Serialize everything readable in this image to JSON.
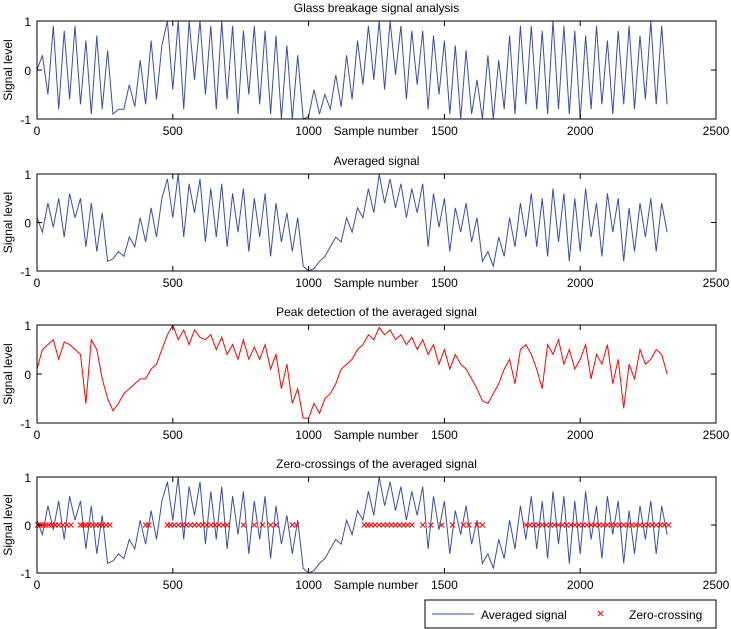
{
  "chart_data": [
    {
      "type": "line",
      "title": "Glass breakage signal analysis",
      "xlabel": "Sample number",
      "ylabel": "Signal level",
      "xlim": [
        0,
        2500
      ],
      "ylim": [
        -1,
        1
      ],
      "xticks": [
        "0",
        "500",
        "1000",
        "1500",
        "2000",
        "2500"
      ],
      "yticks": [
        "-1",
        "0",
        "1"
      ],
      "grid": false,
      "color": "#3a4ea6",
      "x_start": 0,
      "x_step": 20,
      "series": [
        {
          "values": [
            0,
            0.3,
            -0.5,
            0.9,
            -0.8,
            0.8,
            -0.6,
            0.9,
            -0.7,
            0.6,
            -0.9,
            0.7,
            -0.8,
            0.4,
            -0.9,
            -0.8,
            -0.8,
            -0.3,
            -0.75,
            0.2,
            -0.7,
            0.6,
            -0.6,
            0.5,
            1,
            -0.4,
            1,
            -0.8,
            1,
            -0.2,
            1,
            -0.5,
            0.9,
            -0.8,
            1,
            -0.6,
            0.9,
            -0.9,
            0.8,
            -0.5,
            0.9,
            -0.7,
            0.8,
            -0.9,
            0.7,
            -1,
            0.5,
            -1,
            0.3,
            -1,
            -0.95,
            -0.4,
            -0.9,
            -0.5,
            -0.8,
            -0.1,
            -0.75,
            0.3,
            -0.6,
            0.6,
            -0.3,
            0.9,
            -0.2,
            1,
            -0.4,
            1,
            -0.1,
            0.9,
            -0.6,
            0.8,
            -0.3,
            0.8,
            -0.8,
            0.7,
            -0.5,
            0.6,
            -0.9,
            0.5,
            -1,
            0.4,
            -0.9,
            -0.2,
            -1,
            0.3,
            -1,
            0.2,
            -0.8,
            0.7,
            -0.9,
            0.9,
            -0.7,
            0.9,
            -0.8,
            0.8,
            -0.9,
            1,
            -0.8,
            0.9,
            -0.9,
            0.8,
            -1,
            0.7,
            -0.8,
            0.9,
            -0.7,
            0.6,
            -0.9,
            0.8,
            -0.7,
            0.9,
            -0.8,
            0.7,
            -0.6,
            1,
            -0.7,
            0.9,
            -0.7
          ]
        }
      ]
    },
    {
      "type": "line",
      "title": "Averaged signal",
      "xlabel": "Sample number",
      "ylabel": "Signal level",
      "xlim": [
        0,
        2500
      ],
      "ylim": [
        -1,
        1
      ],
      "xticks": [
        "0",
        "500",
        "1000",
        "1500",
        "2000",
        "2500"
      ],
      "yticks": [
        "-1",
        "0",
        "1"
      ],
      "grid": false,
      "color": "#3a4ea6",
      "x_start": 0,
      "x_step": 20,
      "series": [
        {
          "values": [
            0.1,
            -0.2,
            0.4,
            -0.1,
            0.5,
            -0.3,
            0.6,
            0.1,
            0.5,
            -0.5,
            0.4,
            -0.6,
            0.2,
            -0.8,
            -0.75,
            -0.6,
            -0.7,
            -0.3,
            -0.5,
            0.1,
            -0.4,
            0.3,
            -0.3,
            0.5,
            0.9,
            0.1,
            1,
            -0.3,
            0.8,
            0.2,
            0.9,
            -0.4,
            0.7,
            -0.3,
            0.8,
            -0.5,
            0.6,
            -0.2,
            0.7,
            -0.6,
            0.5,
            -0.3,
            0.6,
            -0.7,
            0.4,
            -0.4,
            0.2,
            -0.6,
            0.1,
            -0.9,
            -1,
            -0.95,
            -0.8,
            -0.7,
            -0.5,
            -0.3,
            -0.4,
            0.1,
            -0.2,
            0.3,
            0.1,
            0.7,
            0.2,
            1,
            0.4,
            0.9,
            0.3,
            0.8,
            0.1,
            0.7,
            0.2,
            0.8,
            -0.5,
            0.6,
            -0.1,
            0.5,
            -0.6,
            0.3,
            -0.2,
            0.4,
            -0.4,
            0.1,
            -0.8,
            -0.6,
            -0.9,
            -0.3,
            -0.7,
            0.1,
            -0.5,
            0.4,
            -0.3,
            0.6,
            -0.5,
            0.5,
            -0.7,
            0.7,
            -0.4,
            0.6,
            -0.8,
            0.5,
            -0.6,
            0.7,
            -0.3,
            0.4,
            -0.7,
            0.6,
            -0.2,
            0.5,
            -0.8,
            0.3,
            -0.6,
            0.4,
            -0.3,
            0.5,
            -0.6,
            0.4,
            -0.2
          ]
        }
      ]
    },
    {
      "type": "line",
      "title": "Peak detection of the averaged signal",
      "xlabel": "Sample number",
      "ylabel": "Signal level",
      "xlim": [
        0,
        2500
      ],
      "ylim": [
        -1,
        1
      ],
      "xticks": [
        "0",
        "500",
        "1000",
        "1500",
        "2000",
        "2500"
      ],
      "yticks": [
        "-1",
        "0",
        "1"
      ],
      "grid": false,
      "color": "#ff0000",
      "x_start": 0,
      "x_step": 20,
      "series": [
        {
          "values": [
            0.1,
            0.5,
            0.6,
            0.7,
            0.3,
            0.65,
            0.6,
            0.5,
            0.4,
            -0.6,
            0.7,
            0.5,
            -0.1,
            -0.5,
            -0.75,
            -0.6,
            -0.4,
            -0.3,
            -0.2,
            -0.1,
            -0.1,
            0.1,
            0.2,
            0.5,
            0.8,
            1,
            0.7,
            0.9,
            0.6,
            0.9,
            0.75,
            0.7,
            0.8,
            0.5,
            0.75,
            0.4,
            0.6,
            0.3,
            0.7,
            0.3,
            0.55,
            0.3,
            0.6,
            0.1,
            0.4,
            -0.3,
            0.2,
            -0.6,
            -0.3,
            -0.9,
            -0.9,
            -0.6,
            -0.8,
            -0.5,
            -0.4,
            -0.2,
            0.1,
            0.2,
            0.3,
            0.5,
            0.6,
            0.8,
            0.7,
            0.95,
            0.8,
            0.9,
            0.7,
            0.8,
            0.6,
            0.75,
            0.5,
            0.7,
            0.4,
            0.6,
            0.2,
            0.5,
            0.1,
            0.4,
            0.2,
            0.1,
            -0.1,
            -0.3,
            -0.55,
            -0.6,
            -0.4,
            -0.2,
            0.1,
            0.3,
            -0.2,
            0.5,
            0.6,
            0.4,
            0.1,
            -0.3,
            0.6,
            0.4,
            0.7,
            0.2,
            0.5,
            0.1,
            0.3,
            0.6,
            -0.1,
            0.4,
            0.2,
            0.6,
            -0.2,
            0.3,
            -0.7,
            0.2,
            -0.1,
            0.5,
            0.2,
            0.3,
            0.5,
            0.4,
            0
          ]
        }
      ]
    },
    {
      "type": "line",
      "title": "Zero-crossings of the averaged signal",
      "xlabel": "Sample number",
      "ylabel": "Signal level",
      "xlim": [
        0,
        2500
      ],
      "ylim": [
        -1,
        1
      ],
      "xticks": [
        "0",
        "500",
        "1000",
        "1500",
        "2000",
        "2500"
      ],
      "yticks": [
        "-1",
        "0",
        "1"
      ],
      "grid": false,
      "legend_position": "below-right",
      "color": "#3a4ea6",
      "marker_color": "#ff0000",
      "series_ref": "Averaged signal",
      "series": [
        {
          "name": "Averaged signal",
          "same_as_plot": 2
        },
        {
          "name": "Zero-crossing",
          "marker": "x",
          "y": 0,
          "x": [
            3,
            12,
            22,
            33,
            44,
            55,
            68,
            80,
            95,
            110,
            125,
            160,
            170,
            180,
            192,
            205,
            218,
            230,
            242,
            255,
            268,
            400,
            412,
            480,
            492,
            505,
            520,
            535,
            550,
            565,
            580,
            595,
            610,
            625,
            640,
            655,
            670,
            685,
            700,
            760,
            800,
            830,
            860,
            880,
            940,
            955,
            1205,
            1218,
            1230,
            1245,
            1260,
            1275,
            1290,
            1305,
            1320,
            1335,
            1350,
            1365,
            1380,
            1420,
            1450,
            1490,
            1530,
            1570,
            1590,
            1620,
            1640,
            1800,
            1815,
            1830,
            1845,
            1860,
            1875,
            1890,
            1905,
            1920,
            1935,
            1950,
            1965,
            1980,
            1995,
            2010,
            2025,
            2040,
            2055,
            2070,
            2085,
            2100,
            2115,
            2130,
            2145,
            2160,
            2175,
            2190,
            2205,
            2220,
            2235,
            2250,
            2265,
            2280,
            2295,
            2310,
            2325
          ]
        }
      ]
    }
  ]
}
